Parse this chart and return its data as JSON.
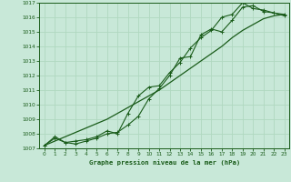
{
  "xlabel": "Graphe pression niveau de la mer (hPa)",
  "xlim": [
    -0.5,
    23.5
  ],
  "ylim": [
    1007,
    1017
  ],
  "xticks": [
    0,
    1,
    2,
    3,
    4,
    5,
    6,
    7,
    8,
    9,
    10,
    11,
    12,
    13,
    14,
    15,
    16,
    17,
    18,
    19,
    20,
    21,
    22,
    23
  ],
  "yticks": [
    1007,
    1008,
    1009,
    1010,
    1011,
    1012,
    1013,
    1014,
    1015,
    1016,
    1017
  ],
  "bg_color": "#c8e8d8",
  "line_color": "#1a5c1a",
  "grid_color": "#b0d8c0",
  "series_smooth": [
    1007.2,
    1007.5,
    1007.8,
    1008.1,
    1008.4,
    1008.7,
    1009.0,
    1009.4,
    1009.8,
    1010.2,
    1010.6,
    1011.0,
    1011.5,
    1012.0,
    1012.5,
    1013.0,
    1013.5,
    1014.0,
    1014.6,
    1015.1,
    1015.5,
    1015.9,
    1016.1,
    1016.2
  ],
  "series_jagged1": [
    1007.2,
    1007.7,
    1007.4,
    1007.3,
    1007.5,
    1007.7,
    1008.0,
    1008.1,
    1008.6,
    1009.2,
    1010.4,
    1011.1,
    1012.0,
    1013.2,
    1013.3,
    1014.8,
    1015.2,
    1015.0,
    1015.8,
    1016.7,
    1016.8,
    1016.4,
    1016.3,
    1016.2
  ],
  "series_jagged2": [
    1007.2,
    1007.8,
    1007.4,
    1007.5,
    1007.6,
    1007.8,
    1008.2,
    1008.0,
    1009.4,
    1010.6,
    1011.2,
    1011.3,
    1012.2,
    1012.9,
    1013.9,
    1014.6,
    1015.1,
    1016.0,
    1016.2,
    1017.0,
    1016.6,
    1016.5,
    1016.3,
    1016.1
  ]
}
